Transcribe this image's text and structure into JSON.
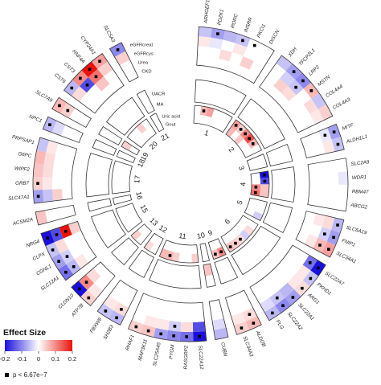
{
  "chart_data": {
    "type": "heatmap",
    "layout": "circular",
    "traits": [
      "eGFRcreat",
      "eGFRcys",
      "Urea",
      "CKD",
      "UACR",
      "MA",
      "Uric acid",
      "Gout"
    ],
    "chromosomes": [
      "1",
      "2",
      "3",
      "4",
      "5",
      "6",
      "9",
      "10",
      "11",
      "12",
      "13",
      "15",
      "16",
      "17",
      "18",
      "19",
      "20",
      "21"
    ],
    "genes": [
      {
        "name": "ARHGEF16",
        "chr": "1",
        "cells": [
          -0.05,
          0.02,
          0,
          0,
          0,
          0,
          0,
          0
        ],
        "sig": [
          0,
          0,
          0,
          0,
          0,
          0,
          0,
          0
        ]
      },
      {
        "name": "PDZK1",
        "chr": "1",
        "cells": [
          -0.08,
          -0.02,
          0,
          0,
          0,
          0,
          0.06,
          0
        ],
        "sig": [
          1,
          0,
          0,
          0,
          0,
          0,
          1,
          0
        ]
      },
      {
        "name": "RORC",
        "chr": "1",
        "cells": [
          -0.06,
          0,
          0.03,
          0,
          0,
          0,
          0.08,
          0
        ],
        "sig": [
          0,
          0,
          0,
          0,
          0,
          0,
          0,
          0
        ]
      },
      {
        "name": "INSRR",
        "chr": "1",
        "cells": [
          -0.05,
          0.02,
          0,
          0,
          0,
          0,
          0,
          0
        ],
        "sig": [
          1,
          0,
          0,
          0,
          0,
          0,
          0,
          0
        ]
      },
      {
        "name": "PKCI1",
        "chr": "1",
        "cells": [
          0,
          0,
          0.04,
          0,
          0,
          0,
          0,
          0
        ],
        "sig": [
          1,
          0,
          0,
          0,
          0,
          0,
          0,
          0
        ]
      },
      {
        "name": "DISCN",
        "chr": "1",
        "cells": [
          0,
          0,
          0,
          0,
          0,
          0,
          0,
          0
        ],
        "sig": [
          0,
          0,
          0,
          0,
          0,
          0,
          0,
          0
        ]
      },
      {
        "name": "XDH",
        "chr": "2",
        "cells": [
          -0.05,
          0,
          0,
          0,
          0,
          0,
          0.08,
          0.06
        ],
        "sig": [
          0,
          0,
          0,
          0,
          0,
          0,
          1,
          0
        ]
      },
      {
        "name": "TFCP2L1",
        "chr": "2",
        "cells": [
          -0.08,
          -0.04,
          0.04,
          0,
          0,
          0,
          0.04,
          0
        ],
        "sig": [
          1,
          0,
          0,
          0,
          0,
          0,
          1,
          0
        ]
      },
      {
        "name": "LRP2",
        "chr": "2",
        "cells": [
          -0.1,
          -0.05,
          0.03,
          0,
          0,
          0,
          0.1,
          0.05
        ],
        "sig": [
          1,
          1,
          0,
          0,
          0,
          0,
          1,
          0
        ]
      },
      {
        "name": "MSTN",
        "chr": "2",
        "cells": [
          0.06,
          0,
          0,
          0,
          0,
          0,
          0.15,
          0
        ],
        "sig": [
          1,
          0,
          0,
          0,
          0,
          0,
          1,
          0
        ]
      },
      {
        "name": "COL4A4",
        "chr": "2",
        "cells": [
          -0.05,
          0.03,
          0,
          0,
          0,
          0,
          0.06,
          0
        ],
        "sig": [
          0,
          0,
          0,
          0,
          0,
          0,
          1,
          0
        ]
      },
      {
        "name": "COL4A3",
        "chr": "2",
        "cells": [
          0.04,
          0.02,
          0,
          0,
          0,
          0,
          0,
          0
        ],
        "sig": [
          0,
          0,
          0,
          0,
          0,
          0,
          0,
          0
        ]
      },
      {
        "name": "MITF",
        "chr": "3",
        "cells": [
          -0.08,
          -0.02,
          0,
          0,
          0,
          0,
          0,
          0
        ],
        "sig": [
          1,
          1,
          0,
          0,
          0,
          0,
          0,
          0
        ]
      },
      {
        "name": "ALDH1L1",
        "chr": "3",
        "cells": [
          -0.05,
          0.02,
          0,
          0,
          0,
          0,
          0,
          0
        ],
        "sig": [
          1,
          0,
          0,
          0,
          0,
          0,
          0,
          0
        ]
      },
      {
        "name": "SLC2A9",
        "chr": "4",
        "cells": [
          0,
          0,
          0,
          0,
          0,
          0,
          -0.2,
          0
        ],
        "sig": [
          0,
          0,
          0,
          0,
          0,
          0,
          1,
          0
        ]
      },
      {
        "name": "WDR1",
        "chr": "4",
        "cells": [
          -0.02,
          0,
          0,
          0,
          0,
          0,
          -0.15,
          0
        ],
        "sig": [
          0,
          0,
          0,
          0,
          0,
          0,
          1,
          0
        ]
      },
      {
        "name": "RBM47",
        "chr": "4",
        "cells": [
          0,
          0,
          0,
          0,
          0,
          0,
          0.05,
          0.1
        ],
        "sig": [
          0,
          0,
          0,
          0,
          0,
          0,
          0,
          1
        ]
      },
      {
        "name": "ABCG2",
        "chr": "4",
        "cells": [
          0,
          0,
          0,
          0,
          0,
          0,
          0.05,
          0.12
        ],
        "sig": [
          0,
          0,
          0,
          0,
          0,
          0,
          0,
          1
        ]
      },
      {
        "name": "SLC6A19",
        "chr": "5",
        "cells": [
          -0.06,
          0.03,
          0.02,
          0,
          0,
          0,
          0,
          0
        ],
        "sig": [
          1,
          0,
          0,
          0,
          0,
          0,
          0,
          0
        ]
      },
      {
        "name": "FNIP1",
        "chr": "5",
        "cells": [
          -0.08,
          -0.04,
          0,
          0,
          0,
          0,
          0,
          0
        ],
        "sig": [
          1,
          1,
          0,
          0,
          0,
          0,
          0,
          0
        ]
      },
      {
        "name": "SLC34A1",
        "chr": "5",
        "cells": [
          0.08,
          0.06,
          0.02,
          0,
          0,
          0,
          -0.04,
          0
        ],
        "sig": [
          1,
          1,
          0,
          0,
          0,
          0,
          0,
          0
        ]
      },
      {
        "name": "SLC22A7",
        "chr": "6",
        "cells": [
          -0.2,
          -0.12,
          0,
          0,
          0,
          0,
          0,
          0
        ],
        "sig": [
          1,
          1,
          0,
          0,
          0,
          0,
          0,
          0
        ]
      },
      {
        "name": "PKHD1",
        "chr": "6",
        "cells": [
          -0.05,
          0.02,
          0,
          0,
          0,
          0,
          0.03,
          0
        ],
        "sig": [
          1,
          0,
          0,
          0,
          0,
          0,
          0,
          0
        ]
      },
      {
        "name": "ARG1",
        "chr": "6",
        "cells": [
          0.03,
          0.02,
          0,
          0,
          0,
          0,
          -0.04,
          0
        ],
        "sig": [
          1,
          0,
          0,
          0,
          0,
          0,
          0,
          0
        ]
      },
      {
        "name": "SLC22A1",
        "chr": "6",
        "cells": [
          -0.08,
          -0.06,
          0,
          0,
          0,
          0,
          0.03,
          0
        ],
        "sig": [
          1,
          0,
          0,
          0,
          0,
          0,
          1,
          0
        ]
      },
      {
        "name": "SLC22A2",
        "chr": "6",
        "cells": [
          -0.1,
          -0.05,
          0,
          0,
          0,
          0,
          0.04,
          0
        ],
        "sig": [
          1,
          1,
          0,
          0,
          0,
          0,
          1,
          0
        ]
      },
      {
        "name": "PLG",
        "chr": "6",
        "cells": [
          -0.06,
          -0.03,
          0,
          0,
          0,
          0,
          0.05,
          0
        ],
        "sig": [
          1,
          0,
          0,
          0,
          0,
          0,
          1,
          0
        ]
      },
      {
        "name": "ALDOB",
        "chr": "9",
        "cells": [
          0.06,
          0.03,
          0,
          0,
          0,
          0,
          0.1,
          0
        ],
        "sig": [
          1,
          1,
          0,
          0,
          0,
          0,
          1,
          0
        ]
      },
      {
        "name": "SLC34A3",
        "chr": "9",
        "cells": [
          0.04,
          0.02,
          0,
          0,
          0,
          0,
          0.05,
          0
        ],
        "sig": [
          1,
          0,
          0,
          0,
          0,
          0,
          1,
          0
        ]
      },
      {
        "name": "CUBN",
        "chr": "10",
        "cells": [
          -0.06,
          -0.03,
          0,
          0,
          0,
          0.05,
          0,
          0
        ],
        "sig": [
          0,
          0,
          0,
          0,
          0,
          0,
          0,
          0
        ]
      },
      {
        "name": "SLC22A12",
        "chr": "11",
        "cells": [
          -0.2,
          -0.15,
          0,
          0,
          0,
          0,
          0.04,
          0
        ],
        "sig": [
          1,
          0,
          0,
          0,
          0,
          0,
          0,
          0
        ]
      },
      {
        "name": "RASGRP2",
        "chr": "11",
        "cells": [
          -0.12,
          0.03,
          0,
          0,
          0,
          0,
          0,
          0
        ],
        "sig": [
          1,
          0,
          0,
          0,
          0,
          0,
          0,
          0
        ]
      },
      {
        "name": "PYGM",
        "chr": "11",
        "cells": [
          -0.1,
          -0.04,
          0,
          0,
          0,
          0,
          0,
          0
        ],
        "sig": [
          1,
          1,
          0,
          0,
          0,
          0,
          0,
          0
        ]
      },
      {
        "name": "SLC25A45",
        "chr": "11",
        "cells": [
          -0.08,
          0.02,
          0,
          0,
          0,
          0,
          0.04,
          0
        ],
        "sig": [
          1,
          0,
          0,
          0,
          0,
          0,
          0,
          0
        ]
      },
      {
        "name": "MAP3K11",
        "chr": "11",
        "cells": [
          0.05,
          0.02,
          0,
          0,
          0,
          0,
          0.06,
          0
        ],
        "sig": [
          1,
          0,
          0,
          0,
          0,
          0,
          1,
          0
        ]
      },
      {
        "name": "RHAF1",
        "chr": "11",
        "cells": [
          0.04,
          0,
          0,
          0,
          0,
          0,
          0.06,
          0
        ],
        "sig": [
          1,
          0,
          0,
          0,
          0,
          0,
          0,
          0
        ]
      },
      {
        "name": "SH2B3",
        "chr": "12",
        "cells": [
          -0.06,
          0.03,
          0,
          0,
          0,
          0,
          0,
          0
        ],
        "sig": [
          1,
          1,
          0,
          0,
          0,
          0,
          0,
          0
        ]
      },
      {
        "name": "FBXW8",
        "chr": "12",
        "cells": [
          -0.05,
          0.02,
          0,
          0,
          0,
          0,
          0.03,
          0
        ],
        "sig": [
          1,
          0,
          0,
          0,
          0,
          0,
          0,
          0
        ]
      },
      {
        "name": "ATP7B",
        "chr": "13",
        "cells": [
          0.04,
          0.02,
          0,
          0,
          0,
          0,
          0,
          0
        ],
        "sig": [
          1,
          0,
          0,
          0,
          0,
          0,
          0,
          0
        ]
      },
      {
        "name": "CLDN10",
        "chr": "13",
        "cells": [
          -0.2,
          0.1,
          0.03,
          0,
          0,
          0,
          0.04,
          0
        ],
        "sig": [
          1,
          1,
          0,
          0,
          0,
          0,
          0,
          0
        ]
      },
      {
        "name": "SLC12A1",
        "chr": "15",
        "cells": [
          -0.12,
          -0.06,
          0.02,
          0,
          0,
          0,
          0,
          0
        ],
        "sig": [
          1,
          1,
          0,
          0,
          0,
          0,
          0,
          0
        ]
      },
      {
        "name": "CGNL1",
        "chr": "15",
        "cells": [
          -0.08,
          -0.04,
          0,
          0,
          0,
          0,
          0,
          0
        ],
        "sig": [
          1,
          1,
          0,
          0,
          0,
          0,
          0,
          0
        ]
      },
      {
        "name": "CLPX",
        "chr": "15",
        "cells": [
          -0.05,
          0.03,
          0,
          0,
          0,
          0,
          0,
          0
        ],
        "sig": [
          1,
          0,
          0,
          0,
          0,
          0,
          0,
          0
        ]
      },
      {
        "name": "NRG4",
        "chr": "15",
        "cells": [
          -0.2,
          -0.15,
          0.2,
          0.04,
          0,
          0,
          0,
          0
        ],
        "sig": [
          1,
          1,
          1,
          0,
          0,
          0,
          0,
          0
        ]
      },
      {
        "name": "ACSM2A",
        "chr": "16",
        "cells": [
          0.05,
          0,
          0,
          0,
          0,
          0,
          0,
          0
        ],
        "sig": [
          0,
          0,
          0,
          0,
          0,
          0,
          0,
          0
        ]
      },
      {
        "name": "SLC47A1",
        "chr": "17",
        "cells": [
          -0.08,
          -0.05,
          0.04,
          0,
          0,
          0,
          0,
          0
        ],
        "sig": [
          1,
          0,
          0,
          0,
          0,
          0,
          0,
          0
        ]
      },
      {
        "name": "GRB7",
        "chr": "17",
        "cells": [
          0.04,
          0.02,
          0,
          0,
          0,
          0,
          0,
          0
        ],
        "sig": [
          1,
          0,
          0,
          0,
          0,
          0,
          0,
          0
        ]
      },
      {
        "name": "WIPF2",
        "chr": "17",
        "cells": [
          0.05,
          0.03,
          0,
          0,
          0,
          0,
          0,
          0
        ],
        "sig": [
          0,
          0,
          0,
          0,
          0,
          0,
          0,
          0
        ]
      },
      {
        "name": "G6PC",
        "chr": "17",
        "cells": [
          0.06,
          0.03,
          0,
          0,
          0,
          0,
          0,
          0
        ],
        "sig": [
          0,
          0,
          0,
          0,
          0,
          0,
          0,
          0
        ]
      },
      {
        "name": "PRPSAP1",
        "chr": "17",
        "cells": [
          -0.05,
          0.02,
          0,
          0,
          0,
          0,
          0,
          0
        ],
        "sig": [
          0,
          0,
          0,
          0,
          0,
          0,
          0,
          0
        ]
      },
      {
        "name": "NPC1",
        "chr": "18",
        "cells": [
          -0.06,
          -0.03,
          0,
          0,
          0,
          0,
          0,
          0
        ],
        "sig": [
          1,
          0,
          0,
          0,
          0,
          0,
          0,
          0
        ]
      },
      {
        "name": "SLC7A9",
        "chr": "19",
        "cells": [
          0.06,
          0.04,
          0,
          0,
          0,
          0,
          0.04,
          0
        ],
        "sig": [
          1,
          1,
          0,
          0,
          0,
          0,
          0,
          0
        ]
      },
      {
        "name": "CST6",
        "chr": "20",
        "cells": [
          -0.06,
          0.03,
          0,
          0,
          0,
          0,
          0,
          0
        ],
        "sig": [
          1,
          0,
          0,
          0,
          0,
          0,
          0,
          0
        ]
      },
      {
        "name": "CST3",
        "chr": "20",
        "cells": [
          0.1,
          -0.15,
          0,
          0,
          0,
          0,
          0,
          0
        ],
        "sig": [
          1,
          1,
          0,
          0,
          0,
          0,
          0,
          0
        ]
      },
      {
        "name": "HNF4A",
        "chr": "20",
        "cells": [
          0.2,
          0.12,
          0.05,
          0,
          0,
          0,
          0.04,
          0
        ],
        "sig": [
          1,
          1,
          0,
          0,
          0,
          0,
          0,
          0
        ]
      },
      {
        "name": "CYP24A1",
        "chr": "20",
        "cells": [
          0.08,
          0.04,
          0,
          0,
          0,
          0,
          0,
          0
        ],
        "sig": [
          1,
          0,
          0,
          0,
          0,
          0,
          0,
          0
        ]
      },
      {
        "name": "SLC5A3",
        "chr": "21",
        "cells": [
          -0.1,
          0.04,
          0,
          0,
          0,
          0,
          0,
          0
        ],
        "sig": [
          1,
          0,
          0,
          0,
          0,
          0,
          0,
          0
        ]
      }
    ],
    "legend": {
      "title": "Effect Size",
      "ticks": [
        "-0.2",
        "-0.1",
        "0",
        "0.1",
        "0.2"
      ],
      "range": [
        -0.2,
        0.2
      ],
      "colors": {
        "negative": "#1a10d8",
        "neutral": "#ffffff",
        "positive": "#e8140e"
      },
      "significance_label": "p < 6.67e−7"
    }
  }
}
